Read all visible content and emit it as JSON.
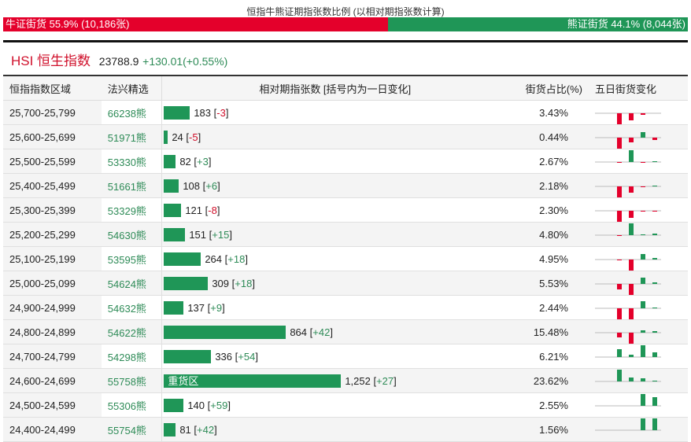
{
  "title": "恒指牛熊证期指张数比例 (以相对期指张数计算)",
  "ratio": {
    "bull_label": "牛证街货 55.9% (10,186张)",
    "bear_label": "熊证街货 44.1% (8,044张)",
    "bull_pct": 55.9,
    "bear_pct": 44.1
  },
  "index": {
    "name": "HSI 恒生指数",
    "price": "23788.9",
    "change": "+130.01(+0.55%)"
  },
  "colors": {
    "bull": "#e4002b",
    "bear": "#1f9657"
  },
  "headers": [
    "恒指指数区域",
    "法兴精选",
    "相对期指张数 [括号内为一日变化]",
    "街货占比(%)",
    "五日街货变化"
  ],
  "rows": [
    {
      "range": "25,700-25,799",
      "code": "66238熊",
      "qty": 183,
      "qty_label": "183",
      "chg": "-3",
      "pct": "3.43%",
      "spark": [
        -15,
        -9,
        -2,
        0
      ]
    },
    {
      "range": "25,600-25,699",
      "code": "51971熊",
      "qty": 24,
      "qty_label": "24",
      "chg": "-5",
      "pct": "0.44%",
      "spark": [
        -15,
        -6,
        7,
        -3
      ]
    },
    {
      "range": "25,500-25,599",
      "code": "53330熊",
      "qty": 82,
      "qty_label": "82",
      "chg": "+3",
      "pct": "2.67%",
      "spark": [
        -1,
        15,
        -1,
        1
      ]
    },
    {
      "range": "25,400-25,499",
      "code": "51661熊",
      "qty": 108,
      "qty_label": "108",
      "chg": "+6",
      "pct": "2.18%",
      "spark": [
        -15,
        -8,
        -1,
        1
      ]
    },
    {
      "range": "25,300-25,399",
      "code": "53329熊",
      "qty": 121,
      "qty_label": "121",
      "chg": "-8",
      "pct": "2.30%",
      "spark": [
        -15,
        -9,
        -1,
        -1
      ]
    },
    {
      "range": "25,200-25,299",
      "code": "54630熊",
      "qty": 151,
      "qty_label": "151",
      "chg": "+15",
      "pct": "4.80%",
      "spark": [
        -1,
        15,
        1,
        2
      ]
    },
    {
      "range": "25,100-25,199",
      "code": "53595熊",
      "qty": 264,
      "qty_label": "264",
      "chg": "+18",
      "pct": "4.95%",
      "spark": [
        -1,
        -15,
        7,
        2
      ]
    },
    {
      "range": "25,000-25,099",
      "code": "54624熊",
      "qty": 309,
      "qty_label": "309",
      "chg": "+18",
      "pct": "5.53%",
      "spark": [
        -7,
        -15,
        8,
        2
      ]
    },
    {
      "range": "24,900-24,999",
      "code": "54632熊",
      "qty": 137,
      "qty_label": "137",
      "chg": "+9",
      "pct": "2.44%",
      "spark": [
        -15,
        -15,
        9,
        1
      ]
    },
    {
      "range": "24,800-24,899",
      "code": "54622熊",
      "qty": 864,
      "qty_label": "864",
      "chg": "+42",
      "pct": "15.48%",
      "spark": [
        -6,
        -15,
        3,
        2
      ]
    },
    {
      "range": "24,700-24,799",
      "code": "54298熊",
      "qty": 336,
      "qty_label": "336",
      "chg": "+54",
      "pct": "6.21%",
      "spark": [
        10,
        3,
        15,
        6
      ]
    },
    {
      "range": "24,600-24,699",
      "code": "55758熊",
      "qty": 1252,
      "qty_label": "1,252",
      "chg": "+27",
      "pct": "23.62%",
      "tag": "重货区",
      "spark": [
        15,
        5,
        4,
        1
      ]
    },
    {
      "range": "24,500-24,599",
      "code": "55306熊",
      "qty": 140,
      "qty_label": "140",
      "chg": "+59",
      "pct": "2.55%",
      "spark": [
        0,
        0,
        15,
        11
      ]
    },
    {
      "range": "24,400-24,499",
      "code": "55754熊",
      "qty": 81,
      "qty_label": "81",
      "chg": "+42",
      "pct": "1.56%",
      "spark": [
        0,
        0,
        15,
        15
      ]
    }
  ]
}
